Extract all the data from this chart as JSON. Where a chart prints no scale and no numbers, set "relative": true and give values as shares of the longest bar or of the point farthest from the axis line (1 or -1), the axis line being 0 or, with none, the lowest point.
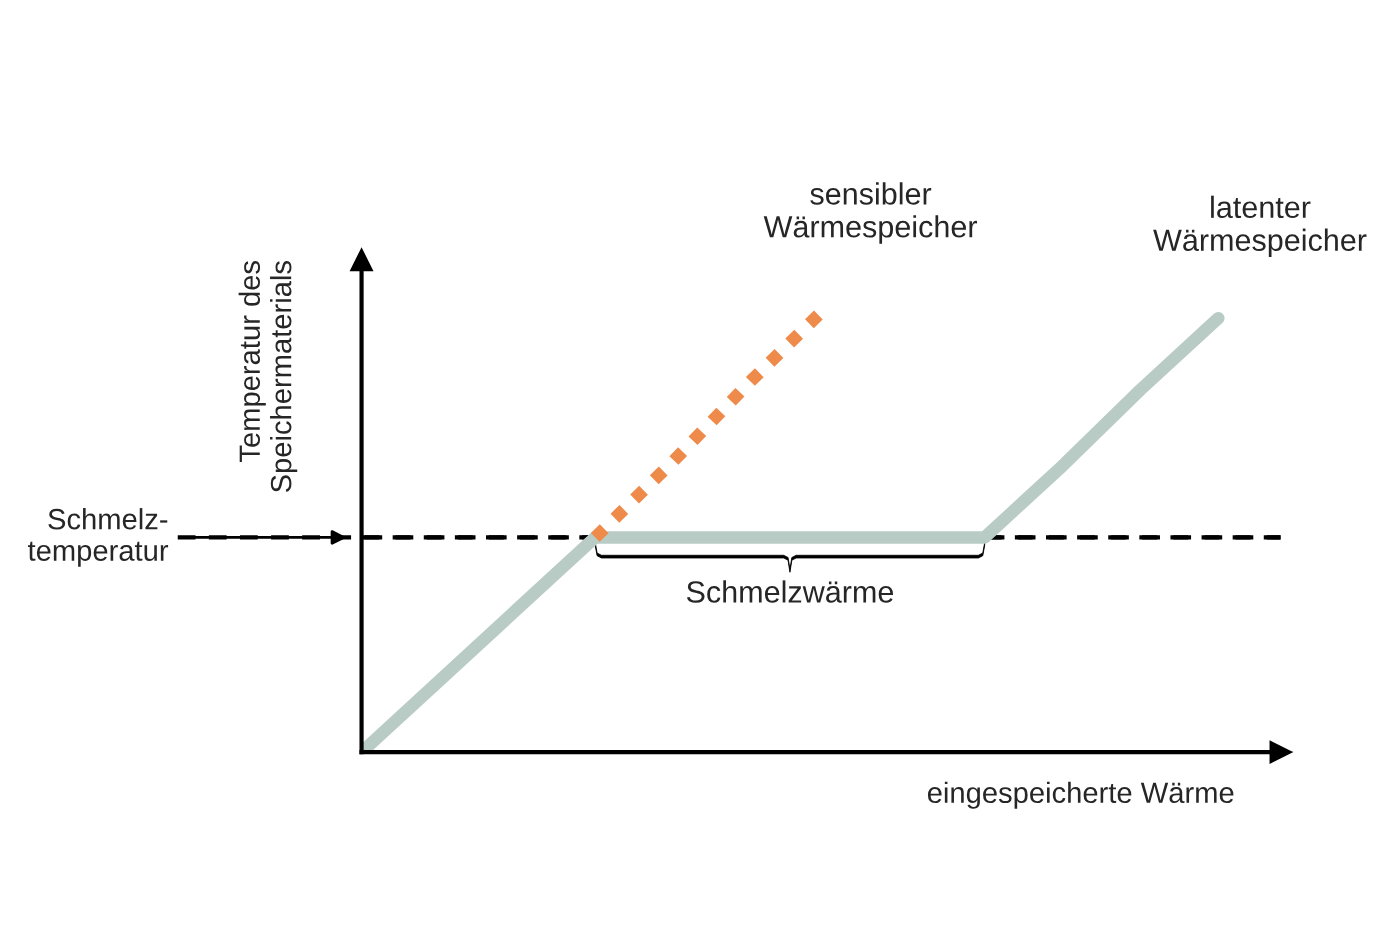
{
  "chart_data": {
    "type": "line",
    "relative": true,
    "xlabel": "eingespeicherte Wärme",
    "ylabel": "Temperatur des\nSpeichermaterials",
    "categories": [
      null,
      null,
      null,
      null,
      null,
      null,
      null,
      null,
      null,
      null,
      null,
      null
    ],
    "series": [
      {
        "name": "latenter\nWärmespeicher",
        "color": "#b8ccc5",
        "line_style": "solid",
        "values": [
          0,
          0.16,
          0.32,
          0.48,
          0.48,
          0.48,
          0.48,
          0.48,
          0.48,
          0.64,
          0.81,
          0.97
        ]
      },
      {
        "name": "sensibler\nWärmespeicher",
        "color": "#ee8a4a",
        "line_style": "dotted",
        "values": [
          null,
          null,
          null,
          0.48,
          0.65,
          0.83,
          1.0,
          null,
          null,
          null,
          null,
          null
        ]
      }
    ],
    "ref_lines": [
      {
        "axis": "y",
        "value": 0.48,
        "label": "Schmelz-\ntemperatur",
        "color": "#000000",
        "line_style": "dashed"
      }
    ],
    "annotations": [
      "Schmelzwärme"
    ],
    "grid": false,
    "legend": false
  }
}
